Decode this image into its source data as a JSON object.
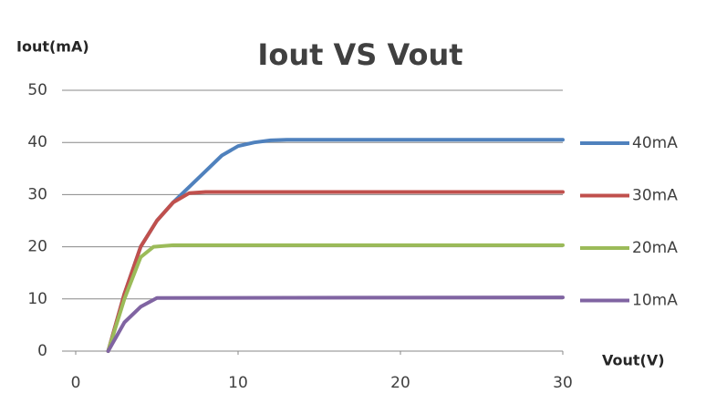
{
  "chart_data": {
    "type": "line",
    "title": "Iout VS Vout",
    "y_label": "Iout(mA)",
    "x_label": "Vout(V)",
    "xlim": [
      0,
      30
    ],
    "xticks": [
      0,
      10,
      20,
      30
    ],
    "ylim": [
      0,
      50
    ],
    "yticks": [
      0,
      10,
      20,
      30,
      40,
      50
    ],
    "grid": true,
    "legend": "right",
    "series": [
      {
        "name": "40mA",
        "color": "#4f81bd",
        "x": [
          2,
          3,
          4,
          5,
          6,
          7,
          8,
          9,
          10,
          11,
          12,
          13,
          30
        ],
        "values": [
          0,
          11,
          20,
          25,
          28.5,
          31.5,
          34.5,
          37.5,
          39.3,
          40,
          40.4,
          40.5,
          40.5
        ]
      },
      {
        "name": "30mA",
        "color": "#c0504d",
        "x": [
          2,
          3,
          4,
          5,
          6,
          7,
          8,
          30
        ],
        "values": [
          0,
          11,
          20,
          25,
          28.5,
          30.3,
          30.5,
          30.5
        ]
      },
      {
        "name": "20mA",
        "color": "#9bbb59",
        "x": [
          2,
          3,
          4,
          4.8,
          6,
          30
        ],
        "values": [
          0,
          10,
          18,
          20,
          20.3,
          20.3
        ]
      },
      {
        "name": "10mA",
        "color": "#8064a2",
        "x": [
          2,
          3,
          4,
          5,
          30
        ],
        "values": [
          0,
          5.5,
          8.5,
          10.2,
          10.3
        ]
      }
    ]
  }
}
